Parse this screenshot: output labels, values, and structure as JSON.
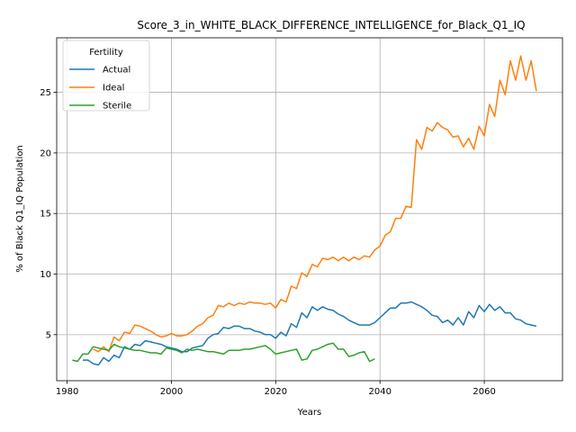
{
  "chart_data": {
    "type": "line",
    "title": "Score_3_in_WHITE_BLACK_DIFFERENCE_INTELLIGENCE_for_Black_Q1_IQ",
    "xlabel": "Years",
    "ylabel": "% of Black Q1_IQ Population",
    "xlim": [
      1978,
      2075
    ],
    "ylim": [
      1.2,
      29.5
    ],
    "xticks": [
      1980,
      2000,
      2020,
      2040,
      2060
    ],
    "yticks": [
      5,
      10,
      15,
      20,
      25
    ],
    "grid": true,
    "legend": {
      "title": "Fertility",
      "placement": "top-left"
    },
    "series": [
      {
        "name": "Actual",
        "color": "#1f77b4",
        "points": [
          [
            1983,
            2.9
          ],
          [
            1984,
            2.9
          ],
          [
            1985,
            2.6
          ],
          [
            1986,
            2.5
          ],
          [
            1987,
            3.1
          ],
          [
            1988,
            2.8
          ],
          [
            1989,
            3.3
          ],
          [
            1990,
            3.1
          ],
          [
            1991,
            4.0
          ],
          [
            1992,
            3.8
          ],
          [
            1993,
            4.2
          ],
          [
            1994,
            4.1
          ],
          [
            1995,
            4.5
          ],
          [
            1996,
            4.4
          ],
          [
            1997,
            4.3
          ],
          [
            1998,
            4.2
          ],
          [
            1999,
            4.0
          ],
          [
            2000,
            3.9
          ],
          [
            2001,
            3.8
          ],
          [
            2002,
            3.6
          ],
          [
            2003,
            3.6
          ],
          [
            2004,
            3.9
          ],
          [
            2005,
            4.0
          ],
          [
            2006,
            4.1
          ],
          [
            2007,
            4.7
          ],
          [
            2008,
            5.0
          ],
          [
            2009,
            5.1
          ],
          [
            2010,
            5.6
          ],
          [
            2011,
            5.5
          ],
          [
            2012,
            5.7
          ],
          [
            2013,
            5.7
          ],
          [
            2014,
            5.5
          ],
          [
            2015,
            5.5
          ],
          [
            2016,
            5.3
          ],
          [
            2017,
            5.2
          ],
          [
            2018,
            5.0
          ],
          [
            2019,
            5.0
          ],
          [
            2020,
            4.7
          ],
          [
            2021,
            5.2
          ],
          [
            2022,
            4.9
          ],
          [
            2023,
            5.9
          ],
          [
            2024,
            5.6
          ],
          [
            2025,
            6.8
          ],
          [
            2026,
            6.4
          ],
          [
            2027,
            7.3
          ],
          [
            2028,
            7.0
          ],
          [
            2029,
            7.3
          ],
          [
            2030,
            7.1
          ],
          [
            2031,
            7.0
          ],
          [
            2032,
            6.7
          ],
          [
            2033,
            6.5
          ],
          [
            2034,
            6.2
          ],
          [
            2035,
            6.0
          ],
          [
            2036,
            5.8
          ],
          [
            2037,
            5.8
          ],
          [
            2038,
            5.8
          ],
          [
            2039,
            6.0
          ],
          [
            2040,
            6.4
          ],
          [
            2041,
            6.8
          ],
          [
            2042,
            7.2
          ],
          [
            2043,
            7.2
          ],
          [
            2044,
            7.6
          ],
          [
            2045,
            7.6
          ],
          [
            2046,
            7.7
          ],
          [
            2047,
            7.5
          ],
          [
            2048,
            7.3
          ],
          [
            2049,
            7.0
          ],
          [
            2050,
            6.6
          ],
          [
            2051,
            6.5
          ],
          [
            2052,
            6.0
          ],
          [
            2053,
            6.2
          ],
          [
            2054,
            5.8
          ],
          [
            2055,
            6.4
          ],
          [
            2056,
            5.8
          ],
          [
            2057,
            6.9
          ],
          [
            2058,
            6.4
          ],
          [
            2059,
            7.4
          ],
          [
            2060,
            6.9
          ],
          [
            2061,
            7.5
          ],
          [
            2062,
            7.0
          ],
          [
            2063,
            7.3
          ],
          [
            2064,
            6.8
          ],
          [
            2065,
            6.8
          ],
          [
            2066,
            6.3
          ],
          [
            2067,
            6.2
          ],
          [
            2068,
            5.9
          ],
          [
            2069,
            5.8
          ],
          [
            2070,
            5.7
          ]
        ]
      },
      {
        "name": "Ideal",
        "color": "#ff7f0e",
        "points": [
          [
            1985,
            3.8
          ],
          [
            1986,
            3.6
          ],
          [
            1987,
            4.0
          ],
          [
            1988,
            3.6
          ],
          [
            1989,
            4.8
          ],
          [
            1990,
            4.5
          ],
          [
            1991,
            5.2
          ],
          [
            1992,
            5.1
          ],
          [
            1993,
            5.8
          ],
          [
            1994,
            5.7
          ],
          [
            1995,
            5.5
          ],
          [
            1996,
            5.3
          ],
          [
            1997,
            5.0
          ],
          [
            1998,
            4.8
          ],
          [
            1999,
            4.9
          ],
          [
            2000,
            5.1
          ],
          [
            2001,
            4.9
          ],
          [
            2002,
            4.9
          ],
          [
            2003,
            5.0
          ],
          [
            2004,
            5.3
          ],
          [
            2005,
            5.7
          ],
          [
            2006,
            5.9
          ],
          [
            2007,
            6.4
          ],
          [
            2008,
            6.6
          ],
          [
            2009,
            7.4
          ],
          [
            2010,
            7.3
          ],
          [
            2011,
            7.6
          ],
          [
            2012,
            7.4
          ],
          [
            2013,
            7.6
          ],
          [
            2014,
            7.5
          ],
          [
            2015,
            7.7
          ],
          [
            2016,
            7.6
          ],
          [
            2017,
            7.6
          ],
          [
            2018,
            7.5
          ],
          [
            2019,
            7.6
          ],
          [
            2020,
            7.2
          ],
          [
            2021,
            7.9
          ],
          [
            2022,
            7.7
          ],
          [
            2023,
            9.0
          ],
          [
            2024,
            8.8
          ],
          [
            2025,
            10.1
          ],
          [
            2026,
            9.8
          ],
          [
            2027,
            10.8
          ],
          [
            2028,
            10.6
          ],
          [
            2029,
            11.3
          ],
          [
            2030,
            11.2
          ],
          [
            2031,
            11.4
          ],
          [
            2032,
            11.1
          ],
          [
            2033,
            11.4
          ],
          [
            2034,
            11.1
          ],
          [
            2035,
            11.4
          ],
          [
            2036,
            11.2
          ],
          [
            2037,
            11.5
          ],
          [
            2038,
            11.4
          ],
          [
            2039,
            12.0
          ],
          [
            2040,
            12.3
          ],
          [
            2041,
            13.2
          ],
          [
            2042,
            13.5
          ],
          [
            2043,
            14.6
          ],
          [
            2044,
            14.6
          ],
          [
            2045,
            15.6
          ],
          [
            2046,
            15.5
          ],
          [
            2047,
            21.1
          ],
          [
            2048,
            20.3
          ],
          [
            2049,
            22.1
          ],
          [
            2050,
            21.8
          ],
          [
            2051,
            22.5
          ],
          [
            2052,
            22.1
          ],
          [
            2053,
            21.9
          ],
          [
            2054,
            21.3
          ],
          [
            2055,
            21.4
          ],
          [
            2056,
            20.5
          ],
          [
            2057,
            21.2
          ],
          [
            2058,
            20.3
          ],
          [
            2059,
            22.2
          ],
          [
            2060,
            21.4
          ],
          [
            2061,
            24.0
          ],
          [
            2062,
            23.0
          ],
          [
            2063,
            26.0
          ],
          [
            2064,
            24.8
          ],
          [
            2065,
            27.6
          ],
          [
            2066,
            26.0
          ],
          [
            2067,
            28.0
          ],
          [
            2068,
            26.0
          ],
          [
            2069,
            27.6
          ],
          [
            2070,
            25.1
          ]
        ]
      },
      {
        "name": "Sterile",
        "color": "#2ca02c",
        "points": [
          [
            1981,
            2.9
          ],
          [
            1982,
            2.8
          ],
          [
            1983,
            3.4
          ],
          [
            1984,
            3.4
          ],
          [
            1985,
            4.0
          ],
          [
            1986,
            3.9
          ],
          [
            1987,
            3.8
          ],
          [
            1988,
            3.7
          ],
          [
            1989,
            4.2
          ],
          [
            1990,
            4.0
          ],
          [
            1991,
            3.9
          ],
          [
            1992,
            3.8
          ],
          [
            1993,
            3.7
          ],
          [
            1994,
            3.7
          ],
          [
            1995,
            3.6
          ],
          [
            1996,
            3.5
          ],
          [
            1997,
            3.5
          ],
          [
            1998,
            3.4
          ],
          [
            1999,
            3.9
          ],
          [
            2000,
            3.8
          ],
          [
            2001,
            3.7
          ],
          [
            2002,
            3.5
          ],
          [
            2003,
            3.8
          ],
          [
            2004,
            3.7
          ],
          [
            2005,
            3.8
          ],
          [
            2006,
            3.7
          ],
          [
            2007,
            3.6
          ],
          [
            2008,
            3.6
          ],
          [
            2009,
            3.5
          ],
          [
            2010,
            3.4
          ],
          [
            2011,
            3.7
          ],
          [
            2012,
            3.7
          ],
          [
            2013,
            3.7
          ],
          [
            2014,
            3.8
          ],
          [
            2015,
            3.8
          ],
          [
            2016,
            3.9
          ],
          [
            2017,
            4.0
          ],
          [
            2018,
            4.1
          ],
          [
            2019,
            3.8
          ],
          [
            2020,
            3.4
          ],
          [
            2021,
            3.5
          ],
          [
            2022,
            3.6
          ],
          [
            2023,
            3.7
          ],
          [
            2024,
            3.8
          ],
          [
            2025,
            2.9
          ],
          [
            2026,
            3.0
          ],
          [
            2027,
            3.7
          ],
          [
            2028,
            3.8
          ],
          [
            2029,
            4.0
          ],
          [
            2030,
            4.2
          ],
          [
            2031,
            4.3
          ],
          [
            2032,
            3.8
          ],
          [
            2033,
            3.8
          ],
          [
            2034,
            3.2
          ],
          [
            2035,
            3.3
          ],
          [
            2036,
            3.5
          ],
          [
            2037,
            3.6
          ],
          [
            2038,
            2.8
          ],
          [
            2039,
            3.0
          ]
        ]
      }
    ]
  }
}
